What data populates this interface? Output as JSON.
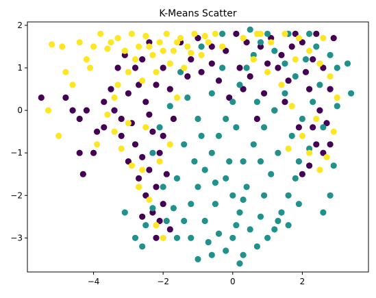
{
  "chart_data": {
    "type": "scatter",
    "title": "K-Means Scatter",
    "xlabel": "",
    "ylabel": "",
    "xlim": [
      -5.9,
      3.9
    ],
    "ylim": [
      -3.8,
      2.08
    ],
    "x_ticks": [
      -4,
      -2,
      0,
      2
    ],
    "y_ticks": [
      -3,
      -2,
      -1,
      0,
      1,
      2
    ],
    "x_tick_labels": [
      "−4",
      "−2",
      "0",
      "2"
    ],
    "y_tick_labels": [
      "−3",
      "−2",
      "−1",
      "0",
      "1",
      "2"
    ],
    "grid": false,
    "legend": "none",
    "series": [
      {
        "color": "#440154",
        "points": [
          [
            -5.5,
            0.3
          ],
          [
            -4.8,
            0.3
          ],
          [
            -4.6,
            0.0
          ],
          [
            -4.4,
            -0.2
          ],
          [
            -4.2,
            0.0
          ],
          [
            -4.4,
            -1.0
          ],
          [
            -4.3,
            -1.5
          ],
          [
            -4.0,
            -1.0
          ],
          [
            -3.9,
            -0.5
          ],
          [
            -3.7,
            -0.4
          ],
          [
            -3.5,
            0.5
          ],
          [
            -3.4,
            0.0
          ],
          [
            -3.2,
            -0.6
          ],
          [
            -3.0,
            -1.2
          ],
          [
            -2.8,
            -0.8
          ],
          [
            -2.7,
            -1.6
          ],
          [
            -2.5,
            -2.0
          ],
          [
            -2.3,
            -2.4
          ],
          [
            -2.2,
            -1.8
          ],
          [
            -2.0,
            -2.2
          ],
          [
            -2.1,
            -2.6
          ],
          [
            -2.4,
            -1.4
          ],
          [
            -2.6,
            -1.1
          ],
          [
            -2.9,
            -0.3
          ],
          [
            -2.5,
            0.2
          ],
          [
            -2.2,
            0.6
          ],
          [
            -2.8,
            1.0
          ],
          [
            -3.1,
            1.3
          ],
          [
            -2.6,
            1.2
          ],
          [
            -2.0,
            1.0
          ],
          [
            -1.8,
            0.5
          ],
          [
            -1.5,
            1.6
          ],
          [
            -1.0,
            1.7
          ],
          [
            -0.6,
            1.5
          ],
          [
            -0.2,
            1.4
          ],
          [
            0.1,
            1.8
          ],
          [
            0.4,
            1.6
          ],
          [
            0.8,
            1.5
          ],
          [
            1.1,
            1.7
          ],
          [
            1.4,
            1.3
          ],
          [
            1.7,
            1.5
          ],
          [
            2.0,
            1.6
          ],
          [
            2.3,
            1.2
          ],
          [
            2.6,
            1.0
          ],
          [
            2.8,
            0.5
          ],
          [
            2.5,
            0.0
          ],
          [
            2.7,
            -0.3
          ],
          [
            2.4,
            -0.8
          ],
          [
            2.2,
            -1.3
          ],
          [
            2.0,
            -1.5
          ],
          [
            1.9,
            -0.4
          ],
          [
            1.5,
            0.2
          ],
          [
            1.2,
            0.0
          ],
          [
            0.9,
            0.4
          ],
          [
            0.5,
            0.8
          ],
          [
            0.2,
            1.0
          ],
          [
            -0.4,
            0.7
          ],
          [
            -0.9,
            0.9
          ],
          [
            -1.3,
            0.8
          ],
          [
            -1.7,
            -0.2
          ],
          [
            -3.3,
            1.0
          ],
          [
            -3.7,
            0.2
          ],
          [
            -3.0,
            0.4
          ],
          [
            -2.3,
            -0.5
          ],
          [
            -2.1,
            -1.0
          ],
          [
            -1.9,
            -1.5
          ],
          [
            -2.6,
            -2.5
          ],
          [
            -2.2,
            -3.0
          ],
          [
            -1.8,
            -2.8
          ],
          [
            1.0,
            1.1
          ],
          [
            1.6,
            0.7
          ],
          [
            2.2,
            0.5
          ],
          [
            2.9,
            1.7
          ],
          [
            2.4,
            1.8
          ],
          [
            1.8,
            1.8
          ],
          [
            -2.4,
            1.6
          ],
          [
            -1.2,
            1.2
          ],
          [
            -0.1,
            0.3
          ],
          [
            0.7,
            -0.2
          ],
          [
            2.6,
            -1.0
          ],
          [
            -2.7,
            0.6
          ],
          [
            -3.2,
            -0.2
          ],
          [
            -2.4,
            -0.1
          ],
          [
            -2.0,
            -0.6
          ],
          [
            1.3,
            1.0
          ],
          [
            0.3,
            0.5
          ],
          [
            -0.6,
            1.1
          ],
          [
            2.1,
            0.9
          ],
          [
            2.8,
            -0.8
          ],
          [
            2.3,
            -0.4
          ]
        ]
      },
      {
        "color": "#21918c",
        "points": [
          [
            -1.0,
            -3.5
          ],
          [
            -0.6,
            -3.4
          ],
          [
            -0.2,
            -3.3
          ],
          [
            0.3,
            -3.4
          ],
          [
            0.7,
            -3.2
          ],
          [
            1.0,
            -3.0
          ],
          [
            1.2,
            -2.8
          ],
          [
            1.4,
            -2.4
          ],
          [
            1.6,
            -2.0
          ],
          [
            1.8,
            -1.6
          ],
          [
            -1.6,
            -3.0
          ],
          [
            -1.9,
            -2.6
          ],
          [
            -2.3,
            -2.3
          ],
          [
            -2.5,
            -2.7
          ],
          [
            -2.8,
            -3.0
          ],
          [
            -2.6,
            -3.2
          ],
          [
            -1.4,
            -2.6
          ],
          [
            -1.2,
            -2.2
          ],
          [
            -1.0,
            -1.8
          ],
          [
            -0.8,
            -1.4
          ],
          [
            -0.6,
            -1.0
          ],
          [
            -0.4,
            -0.6
          ],
          [
            -0.2,
            -0.2
          ],
          [
            0.0,
            0.2
          ],
          [
            0.2,
            0.6
          ],
          [
            0.4,
            1.0
          ],
          [
            0.6,
            1.3
          ],
          [
            0.8,
            1.6
          ],
          [
            1.0,
            1.8
          ],
          [
            1.2,
            1.4
          ],
          [
            0.5,
            -2.8
          ],
          [
            0.2,
            -2.4
          ],
          [
            0.0,
            -2.0
          ],
          [
            -0.2,
            -1.6
          ],
          [
            0.3,
            -1.2
          ],
          [
            0.6,
            -0.8
          ],
          [
            0.9,
            -0.4
          ],
          [
            1.2,
            0.0
          ],
          [
            1.5,
            0.4
          ],
          [
            1.8,
            0.8
          ],
          [
            2.1,
            1.2
          ],
          [
            2.4,
            1.5
          ],
          [
            2.8,
            1.3
          ],
          [
            3.0,
            1.0
          ],
          [
            3.3,
            1.1
          ],
          [
            3.4,
            0.4
          ],
          [
            3.0,
            0.1
          ],
          [
            2.6,
            -0.4
          ],
          [
            2.2,
            -0.9
          ],
          [
            1.9,
            -1.2
          ],
          [
            2.9,
            -1.3
          ],
          [
            2.6,
            -2.4
          ],
          [
            1.6,
            -2.7
          ],
          [
            0.8,
            -2.5
          ],
          [
            -0.4,
            -2.9
          ],
          [
            -1.2,
            -3.0
          ],
          [
            -1.6,
            -1.6
          ],
          [
            -1.4,
            -0.8
          ],
          [
            -1.0,
            -0.2
          ],
          [
            -0.6,
            0.4
          ],
          [
            -1.5,
            0.9
          ],
          [
            -0.9,
            1.5
          ],
          [
            -0.3,
            1.8
          ],
          [
            0.5,
            1.9
          ],
          [
            1.6,
            1.8
          ],
          [
            2.2,
            1.8
          ],
          [
            -2.3,
            -1.0
          ],
          [
            -2.1,
            -0.4
          ],
          [
            -1.8,
            0.1
          ],
          [
            -0.8,
            -2.6
          ],
          [
            0.0,
            -3.0
          ],
          [
            0.9,
            -2.0
          ],
          [
            1.3,
            -1.0
          ],
          [
            -0.1,
            -1.2
          ],
          [
            -0.5,
            -2.2
          ],
          [
            0.4,
            -1.8
          ],
          [
            1.1,
            -1.5
          ],
          [
            -1.1,
            -1.2
          ],
          [
            0.7,
            0.2
          ],
          [
            -0.3,
            1.0
          ],
          [
            2.0,
            -0.2
          ],
          [
            2.5,
            0.6
          ],
          [
            1.5,
            1.1
          ],
          [
            -2.0,
            -1.8
          ],
          [
            -1.7,
            -2.3
          ],
          [
            -0.7,
            -3.1
          ],
          [
            0.1,
            -2.7
          ],
          [
            1.3,
            -2.6
          ],
          [
            0.2,
            -3.6
          ],
          [
            -3.1,
            -2.4
          ],
          [
            2.8,
            -2.0
          ],
          [
            1.9,
            -2.2
          ],
          [
            -0.9,
            -0.6
          ],
          [
            0.1,
            -0.4
          ],
          [
            0.8,
            -1.2
          ],
          [
            -1.3,
            0.3
          ],
          [
            1.7,
            -0.6
          ],
          [
            2.3,
            0.2
          ],
          [
            -0.5,
            -1.7
          ],
          [
            0.3,
            -2.1
          ]
        ]
      },
      {
        "color": "#fde725",
        "points": [
          [
            -5.3,
            0.0
          ],
          [
            -5.0,
            -0.6
          ],
          [
            -5.2,
            1.55
          ],
          [
            -4.9,
            1.5
          ],
          [
            -4.8,
            0.9
          ],
          [
            -4.6,
            0.6
          ],
          [
            -4.4,
            1.6
          ],
          [
            -4.2,
            1.2
          ],
          [
            -4.0,
            1.5
          ],
          [
            -3.8,
            1.8
          ],
          [
            -3.5,
            1.6
          ],
          [
            -3.3,
            1.7
          ],
          [
            -3.1,
            1.4
          ],
          [
            -2.9,
            1.8
          ],
          [
            -2.7,
            1.5
          ],
          [
            -2.5,
            1.75
          ],
          [
            -2.3,
            1.3
          ],
          [
            -2.1,
            1.6
          ],
          [
            -1.9,
            1.8
          ],
          [
            -1.7,
            1.4
          ],
          [
            -1.5,
            1.7
          ],
          [
            -1.3,
            1.5
          ],
          [
            -1.1,
            1.8
          ],
          [
            -0.9,
            1.3
          ],
          [
            -0.7,
            1.6
          ],
          [
            -0.5,
            1.8
          ],
          [
            -0.3,
            1.5
          ],
          [
            -1.8,
            1.1
          ],
          [
            -2.2,
            0.9
          ],
          [
            -2.6,
            0.7
          ],
          [
            -3.0,
            0.9
          ],
          [
            -3.4,
            0.3
          ],
          [
            -3.6,
            -0.1
          ],
          [
            -3.9,
            -0.8
          ],
          [
            -3.2,
            -0.9
          ],
          [
            -2.9,
            -1.3
          ],
          [
            -2.7,
            -1.8
          ],
          [
            -2.4,
            -2.1
          ],
          [
            -2.1,
            -1.2
          ],
          [
            -1.8,
            -0.8
          ],
          [
            -1.6,
            0.3
          ],
          [
            -1.4,
            1.0
          ],
          [
            0.3,
            1.7
          ],
          [
            0.7,
            1.8
          ],
          [
            1.1,
            1.6
          ],
          [
            1.5,
            1.8
          ],
          [
            1.9,
            1.7
          ],
          [
            2.2,
            1.4
          ],
          [
            2.5,
            1.1
          ],
          [
            2.8,
            0.8
          ],
          [
            3.0,
            0.3
          ],
          [
            2.9,
            -0.5
          ],
          [
            2.7,
            -1.1
          ],
          [
            2.5,
            -1.4
          ],
          [
            2.2,
            -1.0
          ],
          [
            2.0,
            -0.6
          ],
          [
            1.7,
            0.1
          ],
          [
            1.4,
            0.6
          ],
          [
            1.0,
            0.9
          ],
          [
            0.6,
            1.2
          ],
          [
            -2.0,
            1.4
          ],
          [
            -1.6,
            1.6
          ],
          [
            -1.2,
            1.35
          ],
          [
            -0.8,
            1.75
          ],
          [
            -2.4,
            1.5
          ],
          [
            -2.8,
            1.2
          ],
          [
            -3.6,
            1.45
          ],
          [
            -4.1,
            1.0
          ],
          [
            -3.3,
            0.6
          ],
          [
            -2.5,
            -0.4
          ],
          [
            -3.4,
            -0.5
          ],
          [
            -3.0,
            -0.3
          ],
          [
            -2.6,
            -1.4
          ],
          [
            -2.2,
            -2.7
          ],
          [
            -2.0,
            -3.0
          ],
          [
            1.8,
            1.2
          ],
          [
            2.6,
            1.7
          ],
          [
            2.4,
            -0.2
          ],
          [
            1.6,
            -0.9
          ],
          [
            0.8,
            1.8
          ]
        ]
      }
    ]
  }
}
